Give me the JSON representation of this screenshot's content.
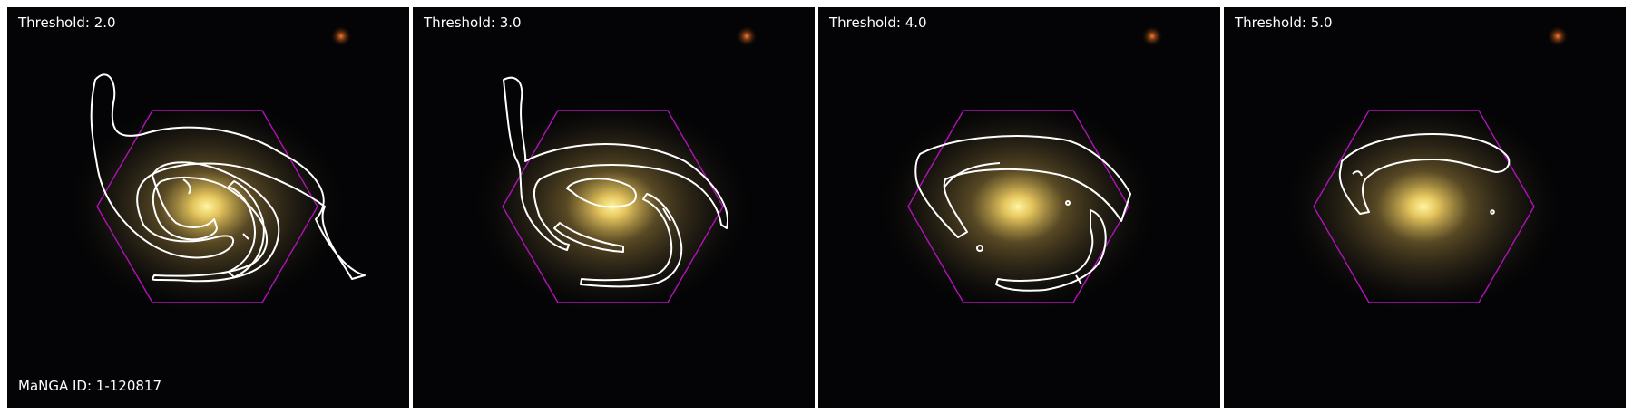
{
  "panels": [
    {
      "threshold_label": "Threshold: 2.0"
    },
    {
      "threshold_label": "Threshold: 3.0"
    },
    {
      "threshold_label": "Threshold: 4.0"
    },
    {
      "threshold_label": "Threshold: 5.0"
    }
  ],
  "manga_id_label": "MaNGA ID: 1-120817",
  "colors": {
    "contour": "#ffffff",
    "hexagon": "#b012b8",
    "background": "#000000",
    "galaxy_core": "#f6e27a",
    "star": "#ff6a1a"
  }
}
